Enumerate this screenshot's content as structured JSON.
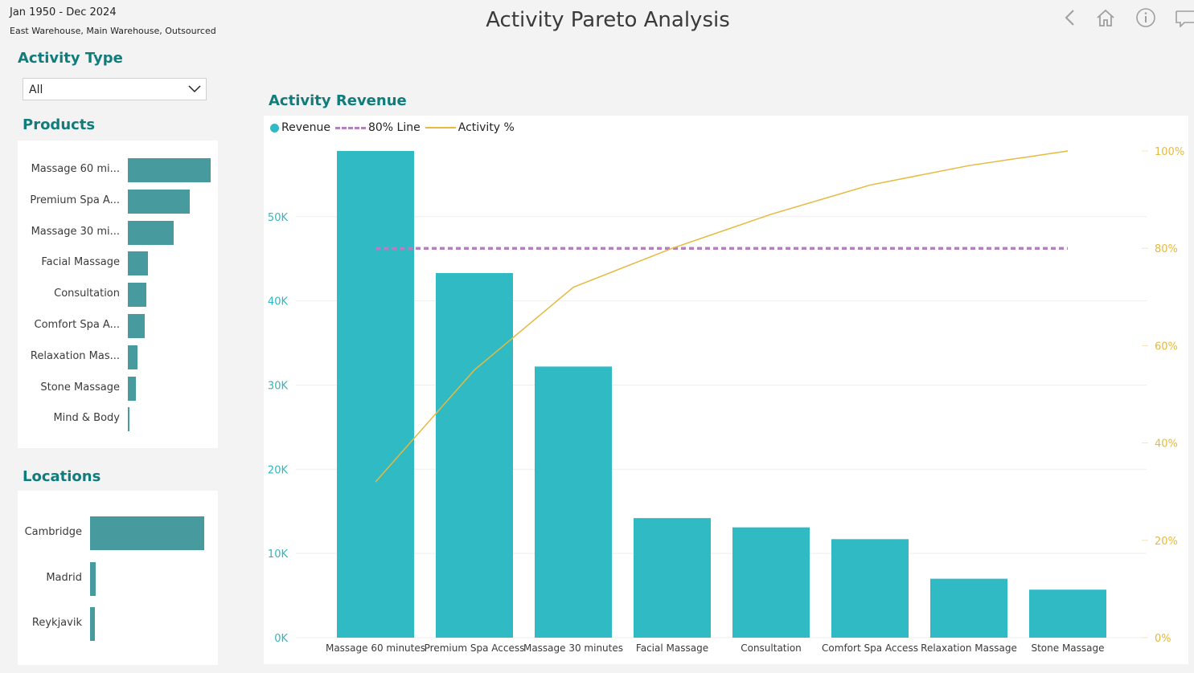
{
  "header": {
    "date_range": "Jan 1950 - Dec 2024",
    "locations_filter": "East Warehouse, Main Warehouse, Outsourced",
    "title": "Activity Pareto Analysis"
  },
  "nav_icons": [
    "back-icon",
    "home-icon",
    "info-icon",
    "comment-icon"
  ],
  "activity_type": {
    "title": "Activity Type",
    "selected": "All"
  },
  "products": {
    "title": "Products",
    "items": [
      {
        "label": "Massage 60 mi...",
        "value": 57800
      },
      {
        "label": "Premium Spa A...",
        "value": 43300
      },
      {
        "label": "Massage 30 mi...",
        "value": 32200
      },
      {
        "label": "Facial Massage",
        "value": 14200
      },
      {
        "label": "Consultation",
        "value": 13100
      },
      {
        "label": "Comfort Spa A...",
        "value": 11700
      },
      {
        "label": "Relaxation Mas...",
        "value": 7000
      },
      {
        "label": "Stone Massage",
        "value": 5700
      },
      {
        "label": "Mind & Body",
        "value": 300
      }
    ]
  },
  "locations": {
    "title": "Locations",
    "items": [
      {
        "label": "Cambridge",
        "value": 100
      },
      {
        "label": "Madrid",
        "value": 5
      },
      {
        "label": "Reykjavik",
        "value": 4
      }
    ]
  },
  "colors": {
    "accent": "#107c7c",
    "bar": "#2fbac4",
    "small_bar": "#479a9d",
    "line_80": "#b57fc1",
    "activity_line": "#e6b93f"
  },
  "chart_data": {
    "type": "bar",
    "title": "Activity Revenue",
    "legend": [
      "Revenue",
      "80% Line",
      "Activity %"
    ],
    "legend_position": "top-left",
    "categories": [
      "Massage 60 minutes",
      "Premium Spa Access",
      "Massage 30 minutes",
      "Facial Massage",
      "Consultation",
      "Comfort Spa Access",
      "Relaxation Massage",
      "Stone Massage"
    ],
    "series": [
      {
        "name": "Revenue",
        "type": "bar",
        "axis": "left",
        "values": [
          57800,
          43300,
          32200,
          14200,
          13100,
          11700,
          7000,
          5700
        ]
      },
      {
        "name": "80% Line",
        "type": "line",
        "axis": "right",
        "style": "dashed",
        "values": [
          0.8,
          0.8,
          0.8,
          0.8,
          0.8,
          0.8,
          0.8,
          0.8
        ]
      },
      {
        "name": "Activity %",
        "type": "line",
        "axis": "right",
        "values": [
          0.32,
          0.55,
          0.72,
          0.8,
          0.87,
          0.93,
          0.97,
          1.0
        ]
      }
    ],
    "y_left": {
      "min": 0,
      "max": 57800,
      "ticks": [
        0,
        10000,
        20000,
        30000,
        40000,
        50000
      ],
      "tick_labels": [
        "0K",
        "10K",
        "20K",
        "30K",
        "40K",
        "50K"
      ]
    },
    "y_right": {
      "min": 0,
      "max": 1,
      "ticks": [
        0,
        0.2,
        0.4,
        0.6,
        0.8,
        1.0
      ],
      "tick_labels": [
        "0%",
        "20%",
        "40%",
        "60%",
        "80%",
        "100%"
      ]
    },
    "grid": true
  }
}
